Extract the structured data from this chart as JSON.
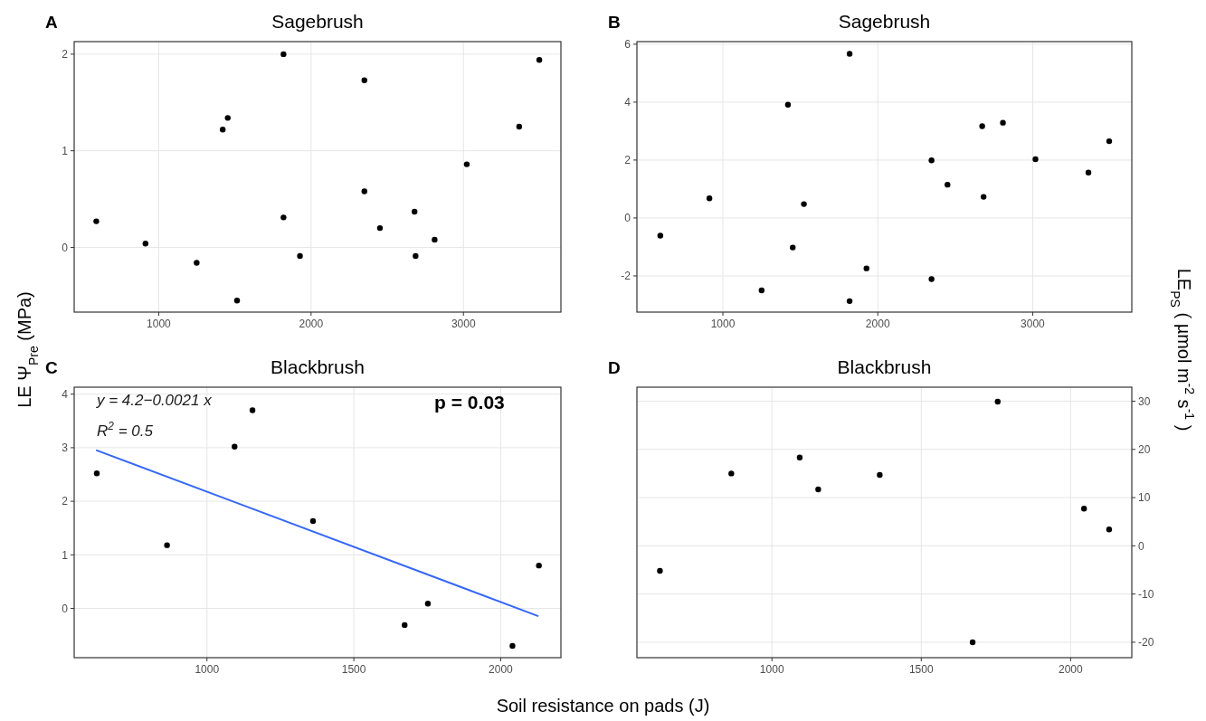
{
  "chart_data": [
    {
      "type": "scatter",
      "title": "Sagebrush",
      "ylabel": "LE Ψ$_{Pre}$ (MPa)",
      "annotations": [
        "A"
      ],
      "xlim": [
        445,
        3640
      ],
      "xticks": [
        1000,
        2000,
        3000
      ],
      "ylim": [
        -0.67,
        2.13
      ],
      "yticks": [
        0,
        1,
        2
      ],
      "grid": true,
      "marker": "circle",
      "series": [
        {
          "color": "#000000",
          "x": [
            590,
            913,
            1249,
            1420,
            1453,
            1514,
            1819,
            1819,
            1927,
            2350,
            2350,
            2452,
            2679,
            2686,
            2811,
            3022,
            3366,
            3498
          ],
          "values": [
            0.27,
            0.04,
            -0.16,
            1.22,
            1.34,
            -0.55,
            2.0,
            0.31,
            -0.09,
            1.73,
            0.58,
            0.2,
            0.37,
            -0.09,
            0.08,
            0.86,
            1.25,
            1.94
          ]
        }
      ]
    },
    {
      "type": "scatter",
      "title": "Sagebrush",
      "annotations": [
        "B"
      ],
      "xlim": [
        445,
        3640
      ],
      "xticks": [
        1000,
        2000,
        3000
      ],
      "ylim": [
        -3.25,
        6.09
      ],
      "yticks": [
        -2,
        0,
        2,
        4,
        6
      ],
      "grid": true,
      "marker": "circle",
      "series": [
        {
          "color": "#000000",
          "x": [
            596,
            913,
            1250,
            1420,
            1451,
            1523,
            1818,
            1818,
            1927,
            2347,
            2347,
            2450,
            2674,
            2683,
            2808,
            3018,
            3360,
            3494
          ],
          "values": [
            -0.61,
            0.68,
            -2.5,
            3.91,
            -1.02,
            0.48,
            5.67,
            -2.87,
            -1.74,
            1.99,
            -2.11,
            1.15,
            3.17,
            0.73,
            3.29,
            2.03,
            1.57,
            2.65
          ]
        }
      ]
    },
    {
      "type": "scatter",
      "title": "Blackbrush",
      "xlabel": "Soil resistance on pads (J)",
      "annotations": [
        "C",
        "y = 4.2−0.0021 x",
        "R$^{2}$ = 0.5",
        "p = 0.03"
      ],
      "xlim": [
        548,
        2205
      ],
      "xticks": [
        1000,
        1500,
        2000
      ],
      "ylim": [
        -0.92,
        4.13
      ],
      "yticks": [
        0,
        1,
        2,
        3,
        4
      ],
      "grid": true,
      "marker": "circle",
      "series": [
        {
          "color": "#000000",
          "x": [
            625,
            864,
            1094,
            1155,
            1361,
            1673,
            1752,
            2040,
            2130
          ],
          "values": [
            2.52,
            1.18,
            3.02,
            3.7,
            1.63,
            -0.31,
            0.09,
            -0.7,
            0.8
          ]
        },
        {
          "type": "line",
          "marker": "none",
          "color": "#3366ff",
          "x": [
            625,
            2126
          ],
          "values": [
            2.95,
            -0.14
          ]
        }
      ]
    },
    {
      "type": "scatter",
      "title": "Blackbrush",
      "y2label": "LE$_{PS}$ ( µmol m$^{-2}$ s$^{-1}$ )",
      "annotations": [
        "D"
      ],
      "xlim": [
        548,
        2205
      ],
      "xticks": [
        1000,
        1500,
        2000
      ],
      "y2lim": [
        -23.2,
        32.9
      ],
      "y2ticks": [
        -20,
        -10,
        0,
        10,
        20,
        30
      ],
      "grid": true,
      "marker": "circle",
      "series": [
        {
          "axis": "y2",
          "color": "#000000",
          "x": [
            625,
            864,
            1093,
            1155,
            1361,
            1672,
            1756,
            2045,
            2129
          ],
          "values": [
            -5.2,
            15.0,
            18.3,
            11.7,
            14.7,
            -20.0,
            29.9,
            7.7,
            3.4
          ]
        }
      ]
    }
  ]
}
